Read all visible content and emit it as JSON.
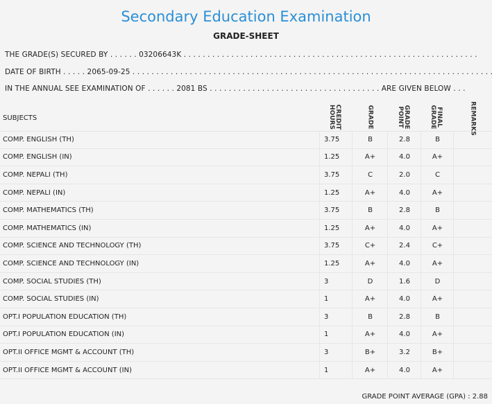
{
  "header": {
    "title": "Secondary Education Examination",
    "subtitle": "GRADE-SHEET"
  },
  "info": {
    "secured_by": "THE GRADE(S) SECURED BY . . . . . . 03206643K . . . . . . . . . . . . . . . . . . . . . . . . . . . . . . . . . . . . . . . . . . . . . . . . . . . . . . . . . . . . . .",
    "dob": "DATE OF BIRTH . . . . . 2065-09-25 . . . . . . . . . . . . . . . . . . . . . . . . . . . . . . . . . . . . . . . . . . . . . . . . . . . . . . . . . . . . . . . . . . . . . . . . . . . .",
    "exam": "IN THE ANNUAL SEE EXAMINATION OF . . . . . . 2081 BS . . . . . . . . . . . . . . . . . . . . . . . . . . . . . . . . . . . . ARE GIVEN BELOW . . ."
  },
  "table": {
    "headers": {
      "subjects": "SUBJECTS",
      "credit": "CREDIT\nHOURS",
      "grade": "GRADE",
      "gp": "GRADE\nPOINT",
      "final": "FINAL\nGRADE",
      "remarks": "REMARKS"
    },
    "rows": [
      {
        "subject": "COMP. ENGLISH (TH)",
        "credit": "3.75",
        "grade": "B",
        "gp": "2.8",
        "final": "B"
      },
      {
        "subject": "COMP. ENGLISH (IN)",
        "credit": "1.25",
        "grade": "A+",
        "gp": "4.0",
        "final": "A+"
      },
      {
        "subject": "COMP. NEPALI (TH)",
        "credit": "3.75",
        "grade": "C",
        "gp": "2.0",
        "final": "C"
      },
      {
        "subject": "COMP. NEPALI (IN)",
        "credit": "1.25",
        "grade": "A+",
        "gp": "4.0",
        "final": "A+"
      },
      {
        "subject": "COMP. MATHEMATICS (TH)",
        "credit": "3.75",
        "grade": "B",
        "gp": "2.8",
        "final": "B"
      },
      {
        "subject": "COMP. MATHEMATICS (IN)",
        "credit": "1.25",
        "grade": "A+",
        "gp": "4.0",
        "final": "A+"
      },
      {
        "subject": "COMP. SCIENCE AND TECHNOLOGY (TH)",
        "credit": "3.75",
        "grade": "C+",
        "gp": "2.4",
        "final": "C+"
      },
      {
        "subject": "COMP. SCIENCE AND TECHNOLOGY (IN)",
        "credit": "1.25",
        "grade": "A+",
        "gp": "4.0",
        "final": "A+"
      },
      {
        "subject": "COMP. SOCIAL STUDIES (TH)",
        "credit": "3",
        "grade": "D",
        "gp": "1.6",
        "final": "D"
      },
      {
        "subject": "COMP. SOCIAL STUDIES (IN)",
        "credit": "1",
        "grade": "A+",
        "gp": "4.0",
        "final": "A+"
      },
      {
        "subject": "OPT.I POPULATION EDUCATION (TH)",
        "credit": "3",
        "grade": "B",
        "gp": "2.8",
        "final": "B"
      },
      {
        "subject": "OPT.I POPULATION EDUCATION (IN)",
        "credit": "1",
        "grade": "A+",
        "gp": "4.0",
        "final": "A+"
      },
      {
        "subject": "OPT.II OFFICE MGMT & ACCOUNT (TH)",
        "credit": "3",
        "grade": "B+",
        "gp": "3.2",
        "final": "B+"
      },
      {
        "subject": "OPT.II OFFICE MGMT & ACCOUNT (IN)",
        "credit": "1",
        "grade": "A+",
        "gp": "4.0",
        "final": "A+"
      }
    ]
  },
  "footer": {
    "gpa": "GRADE POINT AVERAGE (GPA) : 2.88"
  }
}
